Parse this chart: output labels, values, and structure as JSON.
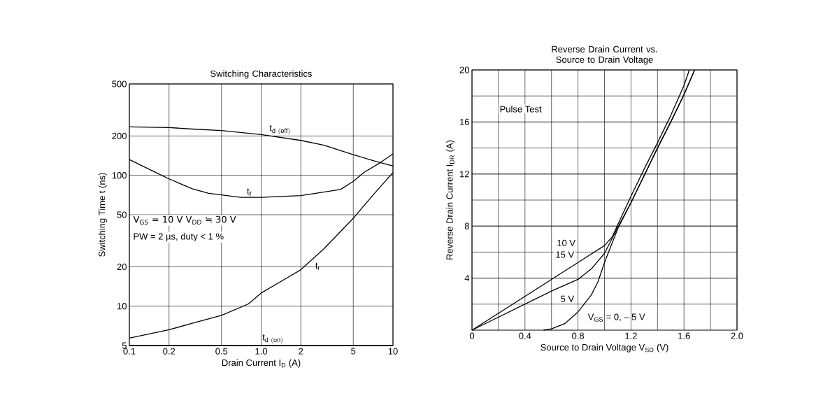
{
  "chart_data": [
    {
      "type": "line",
      "title": "Switching Characteristics",
      "xlabel": "Drain Current  I$_{D}$  (A)",
      "ylabel": "Switching Time  t  (ns)",
      "log": "xy",
      "xlim": [
        0.1,
        10
      ],
      "ylim": [
        5,
        500
      ],
      "xticks": [
        0.1,
        0.2,
        0.5,
        {
          "value": 1,
          "label": "1.0"
        },
        2,
        5,
        10
      ],
      "yticks": [
        5,
        10,
        20,
        50,
        100,
        200,
        500
      ],
      "grid": true,
      "series": [
        {
          "name": "\\mathrm{t}_{\\mathrm{d\\ (off)}}",
          "color": "#000000",
          "x": [
            0.1,
            0.2,
            0.3,
            0.5,
            1,
            2,
            3,
            5,
            7,
            10
          ],
          "values": [
            235,
            232,
            226,
            220,
            205,
            185,
            170,
            144,
            130,
            118
          ]
        },
        {
          "name": "\\mathrm{t}_{\\mathrm{f}}",
          "color": "#000000",
          "x": [
            0.1,
            0.15,
            0.2,
            0.3,
            0.4,
            0.7,
            1,
            2,
            4,
            5,
            6,
            8,
            10
          ],
          "values": [
            132,
            108,
            94,
            79,
            73,
            68,
            68,
            70,
            78,
            90,
            105,
            125,
            146
          ]
        },
        {
          "name": "\\mathrm{t}_{\\mathrm{r}}",
          "color": "#000000",
          "x": [
            0.1,
            0.2,
            0.3,
            0.5,
            0.8,
            1,
            1.5,
            2,
            3,
            5,
            7,
            10
          ],
          "values": [
            5.7,
            6.6,
            7.4,
            8.5,
            10.4,
            12.6,
            16,
            19,
            27.5,
            47,
            70,
            105
          ]
        },
        {
          "name": "\\mathrm{t}_{\\mathrm{d\\ (on)}}",
          "color": "#000000",
          "x": [
            0.1,
            10
          ],
          "values": [
            5,
            5
          ]
        }
      ],
      "annotations": [
        "V$_{GS}$ = 10 V  V$_{DD}$ ≒ 30 V",
        "PW = 2 µs, duty < 1 %"
      ]
    },
    {
      "type": "line",
      "title": "Reverse Drain Current vs. Source to Drain Voltage",
      "xlabel": "Source to Drain Voltage  V$_{SD}$  (V)",
      "ylabel": "Reverse Drain Current  I$_{DR}$  (A)",
      "xlim": [
        0,
        2
      ],
      "ylim": [
        0,
        20
      ],
      "xticks": [
        0,
        0.4,
        0.8,
        1.2,
        1.6,
        {
          "value": 2,
          "label": "2.0"
        }
      ],
      "yticks": [
        4,
        8,
        12,
        16,
        20
      ],
      "grid": true,
      "series": [
        {
          "color": "#000000",
          "x": [
            0,
            0.2,
            0.4,
            0.6,
            0.8,
            1.0,
            1.06,
            1.1,
            1.2,
            1.3,
            1.4,
            1.5,
            1.6,
            1.64
          ],
          "values": [
            0,
            1.3,
            2.6,
            3.9,
            5.2,
            6.5,
            7.2,
            8.1,
            10.3,
            12.4,
            14.4,
            16.5,
            18.8,
            20
          ]
        },
        {
          "color": "#000000",
          "x": [
            0,
            0.2,
            0.4,
            0.6,
            0.8,
            0.9,
            1.0,
            1.1,
            1.2,
            1.3,
            1.4,
            1.5,
            1.6,
            1.68
          ],
          "values": [
            0,
            1.0,
            2.0,
            3.0,
            3.9,
            4.7,
            5.9,
            7.9,
            9.8,
            11.9,
            14.0,
            16.0,
            18.1,
            20
          ]
        },
        {
          "name": "V$_{GS}$ = 0, – 5 V",
          "color": "#000000",
          "x": [
            0.54,
            0.6,
            0.7,
            0.8,
            0.9,
            0.95,
            1.0,
            1.1,
            1.2,
            1.3,
            1.4,
            1.5,
            1.6,
            1.68
          ],
          "values": [
            0,
            0.1,
            0.5,
            1.4,
            2.7,
            3.7,
            5.2,
            7.8,
            9.8,
            11.9,
            14.0,
            16.0,
            18.1,
            20
          ]
        }
      ],
      "annotations": [
        "Pulse Test",
        "10 V",
        "15 V",
        "5 V"
      ]
    }
  ]
}
